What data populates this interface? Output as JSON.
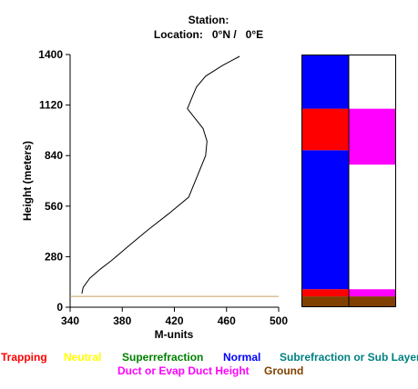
{
  "header": {
    "station_label": "Station:",
    "location_text": "Location:   0°N /   0°E"
  },
  "chart_data": {
    "type": "line",
    "xlabel": "M-units",
    "ylabel": "Height (meters)",
    "xlim": [
      340,
      500
    ],
    "ylim": [
      0,
      1400
    ],
    "x_ticks": [
      340,
      380,
      420,
      460,
      500
    ],
    "y_ticks": [
      0,
      280,
      560,
      840,
      1120,
      1400
    ],
    "grid": false,
    "series": [
      {
        "points": [
          [
            349,
            75
          ],
          [
            350,
            110
          ],
          [
            355,
            160
          ],
          [
            363,
            210
          ],
          [
            372,
            260
          ],
          [
            385,
            340
          ],
          [
            400,
            430
          ],
          [
            416,
            520
          ],
          [
            431,
            610
          ],
          [
            444,
            840
          ],
          [
            445,
            920
          ],
          [
            442,
            990
          ],
          [
            430,
            1100
          ],
          [
            434,
            1170
          ],
          [
            437,
            1220
          ],
          [
            444,
            1280
          ],
          [
            457,
            1340
          ],
          [
            470,
            1390
          ]
        ],
        "color": "#000000"
      },
      {
        "points": [
          [
            340,
            60
          ],
          [
            500,
            60
          ]
        ],
        "color": "#c8a060"
      }
    ],
    "duct_columns": [
      {
        "segments": [
          {
            "from": 0,
            "to": 60,
            "color": "#804000"
          },
          {
            "from": 60,
            "to": 100,
            "color": "#ff0000"
          },
          {
            "from": 100,
            "to": 870,
            "color": "#0000ff"
          },
          {
            "from": 870,
            "to": 1100,
            "color": "#ff0000"
          },
          {
            "from": 1100,
            "to": 1400,
            "color": "#0000ff"
          }
        ]
      },
      {
        "segments": [
          {
            "from": 0,
            "to": 60,
            "color": "#804000"
          },
          {
            "from": 60,
            "to": 100,
            "color": "#ff00ff"
          },
          {
            "from": 100,
            "to": 790,
            "color": "#ffffff"
          },
          {
            "from": 790,
            "to": 1100,
            "color": "#ff00ff"
          },
          {
            "from": 1100,
            "to": 1400,
            "color": "#ffffff"
          }
        ]
      }
    ]
  },
  "legend": [
    {
      "label": "Trapping",
      "color": "#ff0000"
    },
    {
      "label": "Neutral",
      "color": "#ffff00"
    },
    {
      "label": "Superrefraction",
      "color": "#008000"
    },
    {
      "label": "Normal",
      "color": "#0000ff"
    },
    {
      "label": "Subrefraction or Sub Layer",
      "color": "#008080"
    },
    {
      "label": "Duct or Evap Duct Height",
      "color": "#ff00ff"
    },
    {
      "label": "Ground",
      "color": "#804000"
    }
  ]
}
